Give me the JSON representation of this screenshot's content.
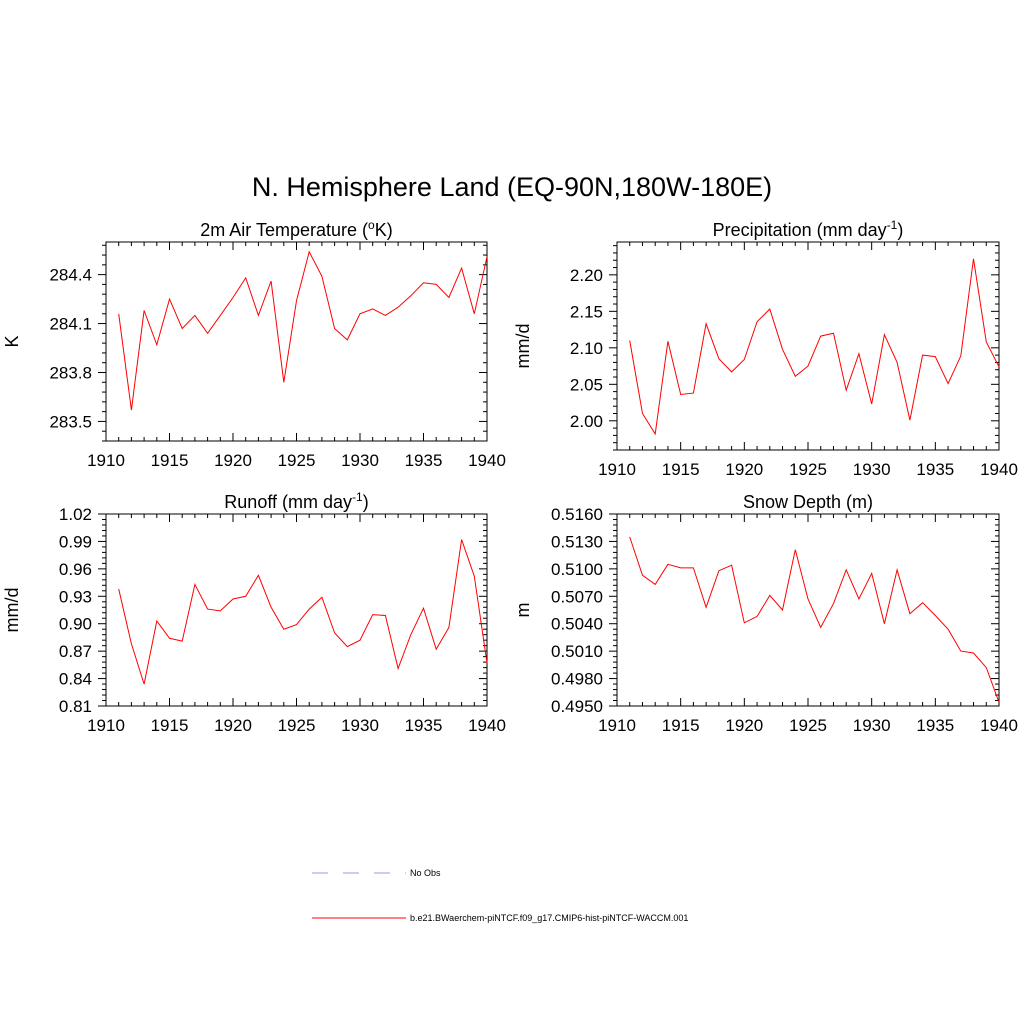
{
  "title": "N. Hemisphere Land (EQ-90N,180W-180E)",
  "colors": {
    "model_line": "#ff0000",
    "obs_line": "#9999dd",
    "axis": "#000000"
  },
  "legend": {
    "entries": [
      {
        "label": "No Obs",
        "style": "dashed",
        "color": "#9999dd"
      },
      {
        "label": "b.e21.BWaerchem-piNTCF.f09_g17.CMIP6-hist-piNTCF-WACCM.001",
        "style": "solid",
        "color": "#ff0000"
      }
    ]
  },
  "chart_data": [
    {
      "type": "line",
      "title": {
        "text": "2m Air Temperature (",
        "sup_prefix": "o",
        "text_after": "K)"
      },
      "ylabel": "K",
      "xlim": [
        1910,
        1940
      ],
      "ylim": [
        283.38,
        284.6
      ],
      "xticks": [
        1910,
        1915,
        1920,
        1925,
        1930,
        1935,
        1940
      ],
      "xtick_labels": [
        "1910",
        "1915",
        "1920",
        "1925",
        "1930",
        "1935",
        "1940"
      ],
      "yticks": [
        283.5,
        283.8,
        284.1,
        284.4
      ],
      "ytick_labels": [
        "283.5",
        "283.8",
        "284.1",
        "284.4"
      ],
      "x": [
        1911,
        1912,
        1913,
        1914,
        1915,
        1916,
        1917,
        1918,
        1919,
        1920,
        1921,
        1922,
        1923,
        1924,
        1925,
        1926,
        1927,
        1928,
        1929,
        1930,
        1931,
        1932,
        1933,
        1934,
        1935,
        1936,
        1937,
        1938,
        1939,
        1940
      ],
      "series": [
        {
          "values": [
            284.16,
            283.57,
            284.18,
            283.97,
            284.25,
            284.07,
            284.15,
            284.04,
            284.15,
            284.26,
            284.38,
            284.15,
            284.36,
            283.74,
            284.24,
            284.54,
            284.39,
            284.07,
            284.0,
            284.16,
            284.19,
            284.15,
            284.2,
            284.27,
            284.35,
            284.34,
            284.26,
            284.44,
            284.16,
            284.51
          ]
        }
      ]
    },
    {
      "type": "line",
      "title": {
        "text": "Precipitation (mm day",
        "sup": "-1",
        "text_after": ")"
      },
      "ylabel": "mm/d",
      "xlim": [
        1910,
        1940
      ],
      "ylim": [
        1.96,
        2.245
      ],
      "xticks": [
        1910,
        1915,
        1920,
        1925,
        1930,
        1935,
        1940
      ],
      "xtick_labels": [
        "1910",
        "1915",
        "1920",
        "1925",
        "1930",
        "1935",
        "1940"
      ],
      "yticks": [
        2.0,
        2.05,
        2.1,
        2.15,
        2.2
      ],
      "ytick_labels": [
        "2.00",
        "2.05",
        "2.10",
        "2.15",
        "2.20"
      ],
      "x": [
        1911,
        1912,
        1913,
        1914,
        1915,
        1916,
        1917,
        1918,
        1919,
        1920,
        1921,
        1922,
        1923,
        1924,
        1925,
        1926,
        1927,
        1928,
        1929,
        1930,
        1931,
        1932,
        1933,
        1934,
        1935,
        1936,
        1937,
        1938,
        1939,
        1940
      ],
      "series": [
        {
          "values": [
            2.11,
            2.01,
            1.982,
            2.109,
            2.036,
            2.038,
            2.133,
            2.085,
            2.067,
            2.084,
            2.136,
            2.153,
            2.098,
            2.061,
            2.075,
            2.116,
            2.12,
            2.042,
            2.092,
            2.023,
            2.118,
            2.08,
            2.001,
            2.09,
            2.088,
            2.051,
            2.089,
            2.222,
            2.108,
            2.074
          ]
        }
      ]
    },
    {
      "type": "line",
      "title": {
        "text": "Runoff (mm day",
        "sup": "-1",
        "text_after": ")"
      },
      "ylabel": "mm/d",
      "xlim": [
        1910,
        1940
      ],
      "ylim": [
        0.81,
        1.02
      ],
      "xticks": [
        1910,
        1915,
        1920,
        1925,
        1930,
        1935,
        1940
      ],
      "xtick_labels": [
        "1910",
        "1915",
        "1920",
        "1925",
        "1930",
        "1935",
        "1940"
      ],
      "yticks": [
        0.81,
        0.84,
        0.87,
        0.9,
        0.93,
        0.96,
        0.99,
        1.02
      ],
      "ytick_labels": [
        "0.81",
        "0.84",
        "0.87",
        "0.90",
        "0.93",
        "0.96",
        "0.99",
        "1.02"
      ],
      "x": [
        1911,
        1912,
        1913,
        1914,
        1915,
        1916,
        1917,
        1918,
        1919,
        1920,
        1921,
        1922,
        1923,
        1924,
        1925,
        1926,
        1927,
        1928,
        1929,
        1930,
        1931,
        1932,
        1933,
        1934,
        1935,
        1936,
        1937,
        1938,
        1939,
        1940
      ],
      "series": [
        {
          "values": [
            0.938,
            0.878,
            0.834,
            0.903,
            0.884,
            0.881,
            0.943,
            0.916,
            0.914,
            0.927,
            0.93,
            0.953,
            0.918,
            0.894,
            0.899,
            0.916,
            0.929,
            0.89,
            0.875,
            0.882,
            0.91,
            0.909,
            0.851,
            0.888,
            0.917,
            0.872,
            0.896,
            0.992,
            0.952,
            0.857
          ]
        }
      ]
    },
    {
      "type": "line",
      "title": {
        "text": "Snow Depth (m)"
      },
      "ylabel": "m",
      "xlim": [
        1910,
        1940
      ],
      "ylim": [
        0.495,
        0.516
      ],
      "xticks": [
        1910,
        1915,
        1920,
        1925,
        1930,
        1935,
        1940
      ],
      "xtick_labels": [
        "1910",
        "1915",
        "1920",
        "1925",
        "1930",
        "1935",
        "1940"
      ],
      "yticks": [
        0.495,
        0.498,
        0.501,
        0.504,
        0.507,
        0.51,
        0.513,
        0.516
      ],
      "ytick_labels": [
        "0.4950",
        "0.4980",
        "0.5010",
        "0.5040",
        "0.5070",
        "0.5100",
        "0.5130",
        "0.5160"
      ],
      "x": [
        1911,
        1912,
        1913,
        1914,
        1915,
        1916,
        1917,
        1918,
        1919,
        1920,
        1921,
        1922,
        1923,
        1924,
        1925,
        1926,
        1927,
        1928,
        1929,
        1930,
        1931,
        1932,
        1933,
        1934,
        1935,
        1936,
        1937,
        1938,
        1939,
        1940
      ],
      "series": [
        {
          "values": [
            0.5135,
            0.5093,
            0.5083,
            0.5105,
            0.5101,
            0.5101,
            0.5058,
            0.5098,
            0.5104,
            0.5041,
            0.5048,
            0.5071,
            0.5055,
            0.5121,
            0.5067,
            0.5036,
            0.5062,
            0.5099,
            0.5067,
            0.5095,
            0.504,
            0.5099,
            0.5051,
            0.5063,
            0.5049,
            0.5034,
            0.501,
            0.5008,
            0.4992,
            0.4954
          ]
        }
      ]
    }
  ]
}
